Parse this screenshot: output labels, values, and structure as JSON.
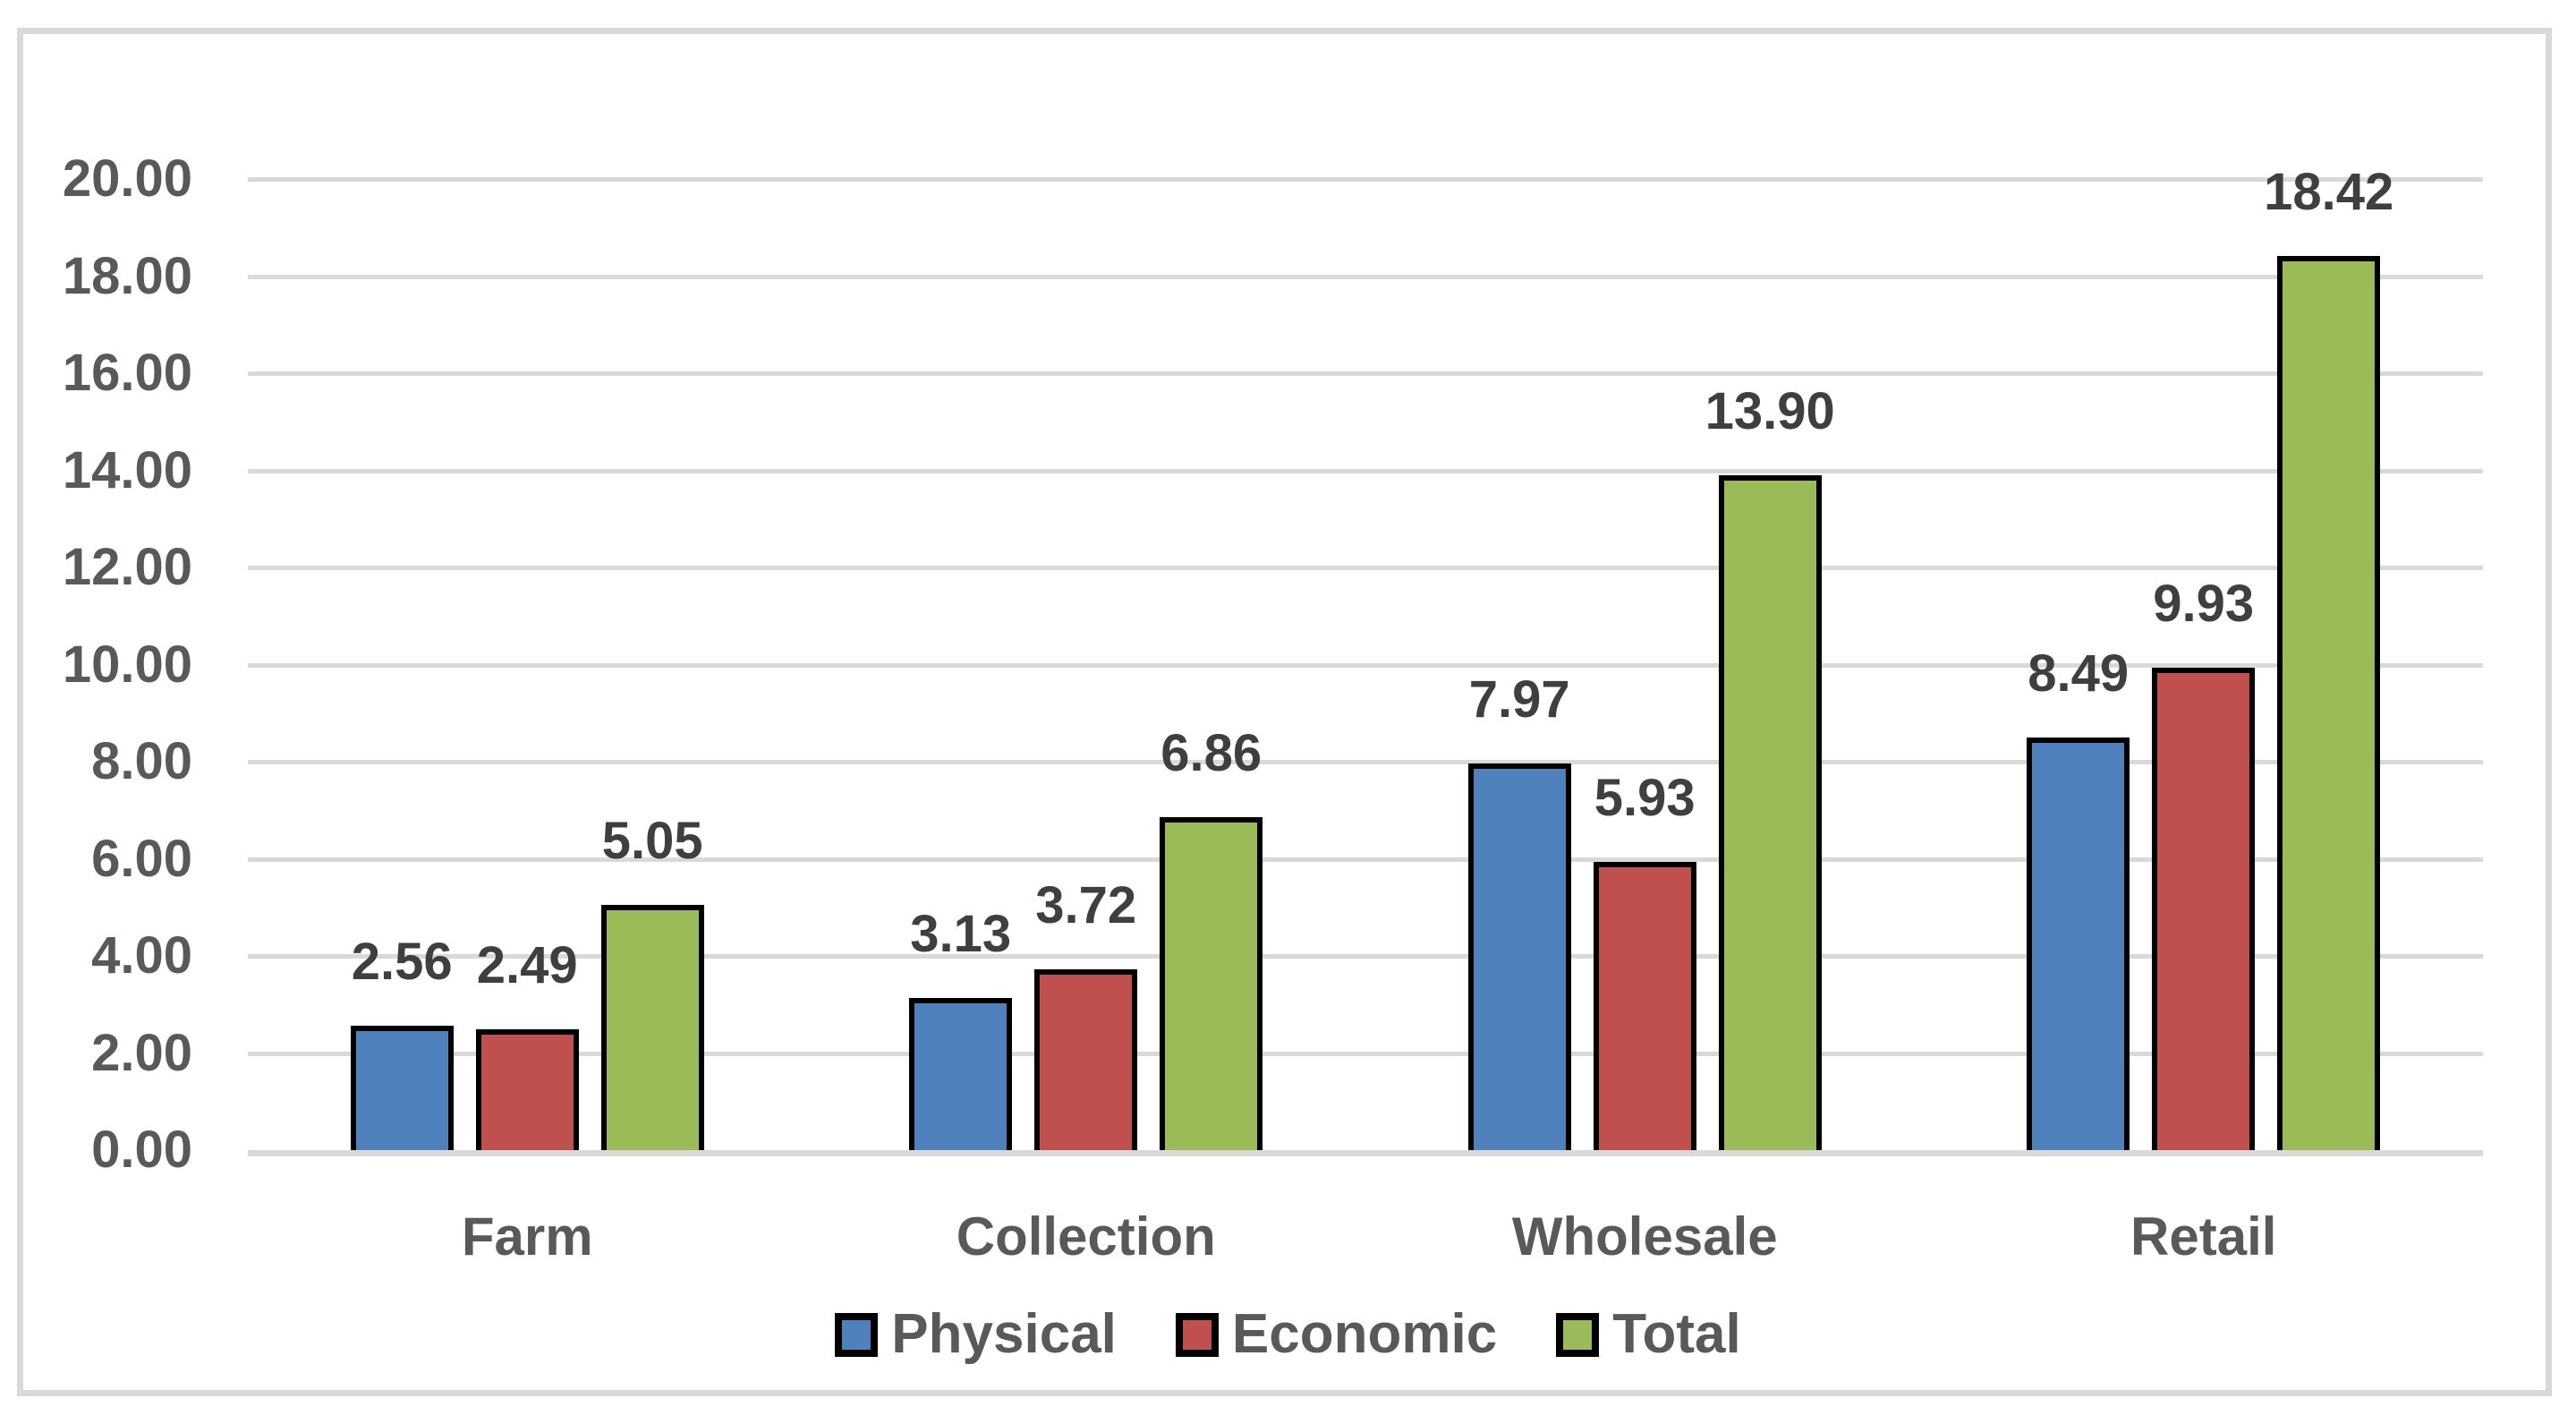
{
  "chart_data": {
    "type": "bar",
    "title": "",
    "xlabel": "",
    "ylabel": "",
    "categories": [
      "Farm",
      "Collection",
      "Wholesale",
      "Retail"
    ],
    "series": [
      {
        "name": "Physical",
        "color": "#4F81BD",
        "values": [
          2.56,
          3.13,
          7.97,
          8.49
        ],
        "labels": [
          "2.56",
          "3.13",
          "7.97",
          "8.49"
        ]
      },
      {
        "name": "Economic",
        "color": "#C0504D",
        "values": [
          2.49,
          3.72,
          5.93,
          9.93
        ],
        "labels": [
          "2.49",
          "3.72",
          "5.93",
          "9.93"
        ]
      },
      {
        "name": "Total",
        "color": "#9BBB59",
        "values": [
          5.05,
          6.86,
          13.9,
          18.42
        ],
        "labels": [
          "5.05",
          "6.86",
          "13.90",
          "18.42"
        ]
      }
    ],
    "y_axis": {
      "min": 0,
      "max": 20,
      "step": 2,
      "tick_labels": [
        "0.00",
        "2.00",
        "4.00",
        "6.00",
        "8.00",
        "10.00",
        "12.00",
        "14.00",
        "16.00",
        "18.00",
        "20.00"
      ]
    },
    "legend": {
      "position": "bottom",
      "entries": [
        "Physical",
        "Economic",
        "Total"
      ]
    },
    "grid": true,
    "ylim": [
      0,
      20
    ],
    "colors": {
      "grid": "#D9D9D9",
      "frame_border": "#D9D9D9",
      "axis_text": "#595959",
      "value_label": "#3F3F3F",
      "bar_border": "#000000",
      "background": "#FFFFFF"
    }
  }
}
